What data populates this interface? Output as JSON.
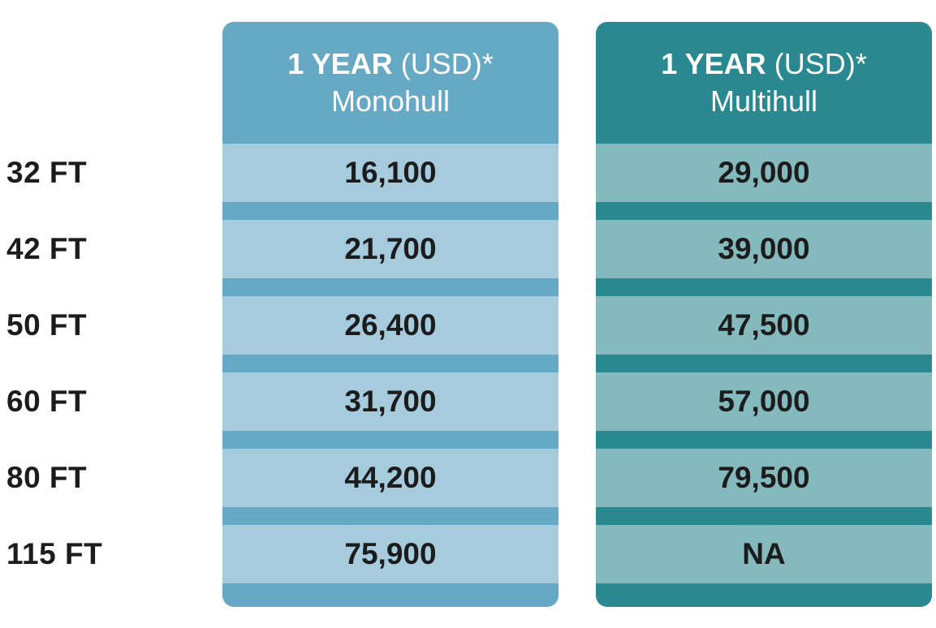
{
  "columns": [
    {
      "header_bold": "1 YEAR",
      "header_light": "(USD)*",
      "subheader": "Monohull",
      "values": [
        "16,100",
        "21,700",
        "26,400",
        "31,700",
        "44,200",
        "75,900"
      ]
    },
    {
      "header_bold": "1 YEAR",
      "header_light": "(USD)*",
      "subheader": "Multihull",
      "values": [
        "29,000",
        "39,000",
        "47,500",
        "57,000",
        "79,500",
        "NA"
      ]
    }
  ],
  "rows": [
    "32 FT",
    "42 FT",
    "50 FT",
    "60 FT",
    "80 FT",
    "115 FT"
  ],
  "colors": {
    "monohull_header": "#66a9c5",
    "monohull_cell": "#a5cbdd",
    "multihull_header": "#2a8890",
    "multihull_cell": "#84babd",
    "text": "#1c1c1c"
  }
}
